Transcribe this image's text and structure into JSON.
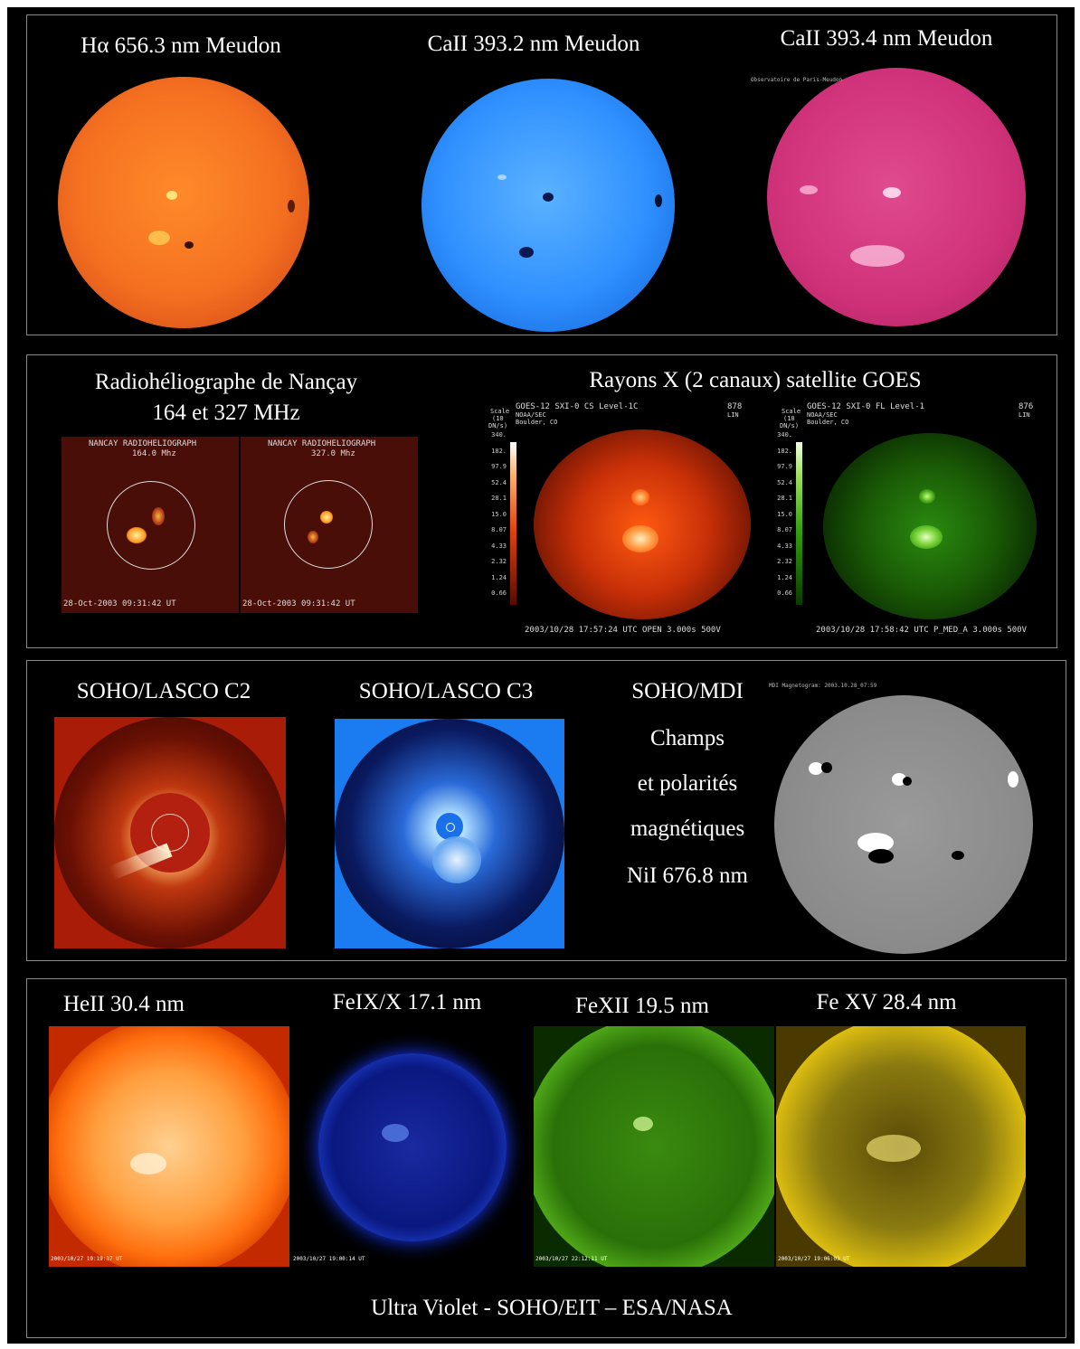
{
  "row1": {
    "caption1": "Hα 656.3 nm Meudon",
    "caption2": "CaII 393.2 nm Meudon",
    "caption3": "CaII 393.4 nm   Meudon",
    "colors": {
      "halpha": "#f06a1a",
      "caii_k3": "#2f90ff",
      "caii_k": "#d8327a"
    }
  },
  "row2": {
    "nancay_title_line1": "Radiohéliographe de Nançay",
    "nancay_title_line2": "164 et 327 MHz",
    "nancay_left_header_line1": "NANCAY RADIOHELIOGRAPH",
    "nancay_left_header_line2": "164.0 Mhz",
    "nancay_right_header_line1": "NANCAY RADIOHELIOGRAPH",
    "nancay_right_header_line2": "327.0 Mhz",
    "nancay_timestamp": "28-Oct-2003 09:31:42 UT",
    "goes_title": "Rayons X (2 canaux) satellite GOES",
    "goes_left": {
      "header1": "GOES-12   SXI-0  CS    Level-1C",
      "header2": "NOAA/SEC",
      "header3": "Boulder, CO",
      "counts": "878",
      "lin": "LIN",
      "footer": "2003/10/28  17:57:24  UTC   OPEN        3.000s   500V"
    },
    "goes_right": {
      "header1": "GOES-12   SXI-0  FL    Level-1",
      "header2": "NOAA/SEC",
      "header3": "Boulder, CO",
      "counts": "876",
      "lin": "LIN",
      "footer": "2003/10/28  17:58:42  UTC   P_MED_A   3.000s   500V"
    },
    "scale_header": [
      "Scale",
      "(10",
      "DN/s)"
    ],
    "scale_ticks": [
      "340.",
      "182.",
      "97.9",
      "52.4",
      "28.1",
      "15.0",
      "8.07",
      "4.33",
      "2.32",
      "1.24",
      "0.66"
    ]
  },
  "row3": {
    "lasco_c2": "SOHO/LASCO C2",
    "lasco_c3": "SOHO/LASCO C3",
    "mdi_line1": "SOHO/MDI",
    "mdi_line2": "Champs",
    "mdi_line3": "et polarités",
    "mdi_line4": "magnétiques",
    "mdi_line5": "NiI 676.8 nm",
    "mdi_header": "MDI Magnetogram:   2003.10.28_07:59"
  },
  "row4": {
    "caption1": "HeII 30.4 nm",
    "caption2": "FeIX/X 17.1 nm",
    "caption3": "FeXII 19.5 nm",
    "caption4": "Fe XV 28.4 nm",
    "stamp1": "2003/10/27 19:19:37 UT",
    "stamp2": "2003/10/27 19:00:14 UT",
    "stamp3": "2003/10/27 22:12:11 UT",
    "stamp4": "2003/10/27 19:06:03 UT",
    "footer": "Ultra Violet - SOHO/EIT – ESA/NASA"
  }
}
